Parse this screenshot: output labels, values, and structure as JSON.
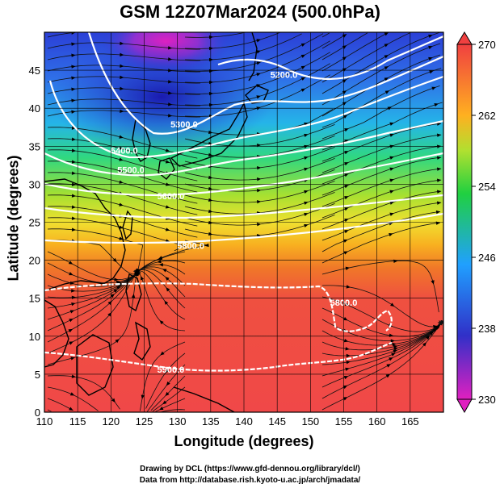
{
  "title": "GSM 12Z07Mar2024 (500.0hPa)",
  "xlabel": "Longitude (degrees)",
  "ylabel": "Latitude  (degrees)",
  "credits": [
    "Drawing by DCL (https://www.gfd-dennou.org/library/dcl/)",
    "Data from http://database.rish.kyoto-u.ac.jp/arch/jmadata/"
  ],
  "chart_data": {
    "type": "heatmap",
    "x_ticks": [
      "110",
      "115",
      "120",
      "125",
      "130",
      "135",
      "140",
      "145",
      "150",
      "155",
      "160",
      "165"
    ],
    "y_ticks": [
      "0",
      "5",
      "10",
      "15",
      "20",
      "25",
      "30",
      "35",
      "40",
      "45"
    ],
    "xlim": [
      110,
      170
    ],
    "ylim": [
      0,
      50
    ],
    "colorbar": {
      "ticks": [
        "230",
        "238",
        "246",
        "254",
        "262",
        "270"
      ],
      "range": [
        230,
        270
      ],
      "colors": [
        "#e020c0",
        "#2020d0",
        "#20a0ff",
        "#20d040",
        "#f0e030",
        "#ff8010",
        "#f04040"
      ]
    },
    "contours": [
      {
        "label": "5200.0",
        "lon": 146,
        "lat": 44
      },
      {
        "label": "5300.0",
        "lon": 131,
        "lat": 37.5
      },
      {
        "label": "5400.0",
        "lon": 122,
        "lat": 34
      },
      {
        "label": "5500.0",
        "lon": 123,
        "lat": 31.5
      },
      {
        "label": "5600.0",
        "lon": 129,
        "lat": 28
      },
      {
        "label": "5800.0",
        "lon": 132,
        "lat": 21.5
      },
      {
        "label": "5800.0",
        "lon": 155,
        "lat": 14
      },
      {
        "label": "5900.0",
        "lon": 129,
        "lat": 5.2
      }
    ]
  }
}
